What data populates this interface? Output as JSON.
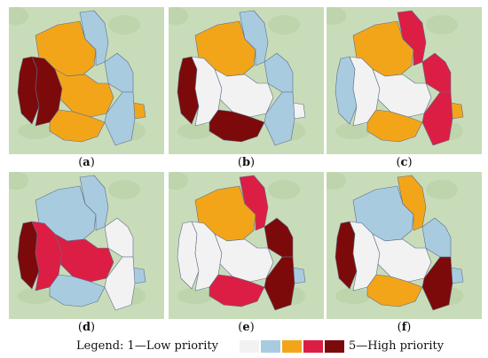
{
  "panels": [
    {
      "label": "a"
    },
    {
      "label": "b"
    },
    {
      "label": "c"
    },
    {
      "label": "d"
    },
    {
      "label": "e"
    },
    {
      "label": "f"
    }
  ],
  "legend": {
    "prefix": "Legend: 1—Low priority",
    "suffix": "5—High priority",
    "levels": [
      {
        "level": 1,
        "color": "#f2f2f2"
      },
      {
        "level": 2,
        "color": "#a9cbe0"
      },
      {
        "level": 3,
        "color": "#f3a51a"
      },
      {
        "level": 4,
        "color": "#dc1e44"
      },
      {
        "level": 5,
        "color": "#7d0a0a"
      }
    ]
  },
  "colors": {
    "basemap": "#c9dcb9",
    "basemap_dark": "#b6cfa3",
    "border": "#5a6e8a"
  }
}
